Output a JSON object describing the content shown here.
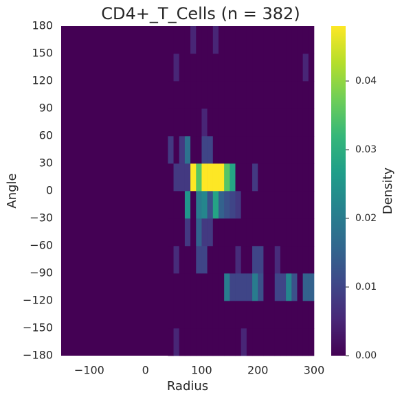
{
  "chart_data": {
    "type": "heatmap",
    "title": "CD4+_T_Cells (n = 382)",
    "x_label": "Radius",
    "y_label": "Angle",
    "colorbar_label": "Density",
    "colormap": "viridis",
    "xlim": [
      -150,
      300
    ],
    "xticks": [
      {
        "value": -100,
        "label": "−100"
      },
      0,
      100,
      200,
      300
    ],
    "ylim": [
      -180,
      180
    ],
    "yticks": [
      {
        "value": -180,
        "label": "−180"
      },
      {
        "value": -150,
        "label": "−150"
      },
      {
        "value": -120,
        "label": "−120"
      },
      {
        "value": -90,
        "label": "−90"
      },
      {
        "value": -60,
        "label": "−60"
      },
      {
        "value": -30,
        "label": "−30"
      },
      0,
      30,
      60,
      90,
      120,
      150,
      180
    ],
    "clim": [
      0,
      0.048
    ],
    "cticks": [
      {
        "value": 0,
        "label": "0.00"
      },
      {
        "value": 0.01,
        "label": "0.01"
      },
      {
        "value": 0.02,
        "label": "0.02"
      },
      {
        "value": 0.03,
        "label": "0.03"
      },
      {
        "value": 0.04,
        "label": "0.04"
      }
    ],
    "x_bins": [
      40,
      50,
      60,
      70,
      80,
      90,
      100,
      110,
      120,
      130,
      140,
      150,
      160,
      170,
      180,
      190,
      200,
      210,
      220,
      230,
      240,
      250,
      260,
      270,
      280,
      290,
      300
    ],
    "y_bins": [
      -180,
      -150,
      -120,
      -90,
      -60,
      -30,
      0,
      30,
      60,
      90,
      120,
      150,
      180
    ],
    "z": [
      [
        0,
        0.005,
        0,
        0,
        0,
        0,
        0,
        0,
        0,
        0,
        0,
        0,
        0,
        0.005,
        0,
        0,
        0,
        0,
        0,
        0,
        0,
        0,
        0,
        0,
        0,
        0
      ],
      [
        0,
        0,
        0,
        0,
        0,
        0,
        0,
        0,
        0,
        0,
        0,
        0,
        0,
        0,
        0,
        0,
        0,
        0,
        0,
        0,
        0,
        0,
        0,
        0,
        0,
        0
      ],
      [
        0,
        0,
        0,
        0,
        0,
        0,
        0,
        0,
        0,
        0,
        0.02,
        0.01,
        0.01,
        0.01,
        0.01,
        0.02,
        0.012,
        0,
        0,
        0.01,
        0.01,
        0.022,
        0.012,
        0,
        0.015,
        0.015
      ],
      [
        0,
        0.006,
        0,
        0,
        0,
        0.01,
        0.01,
        0,
        0,
        0,
        0,
        0,
        0.006,
        0,
        0,
        0.01,
        0.01,
        0,
        0,
        0.006,
        0,
        0,
        0,
        0,
        0,
        0
      ],
      [
        0,
        0,
        0,
        0.008,
        0,
        0.015,
        0.008,
        0.008,
        0,
        0,
        0,
        0,
        0,
        0,
        0,
        0,
        0,
        0,
        0,
        0,
        0,
        0,
        0,
        0,
        0,
        0
      ],
      [
        0,
        0,
        0,
        0.025,
        0,
        0.02,
        0.022,
        0.012,
        0.028,
        0.015,
        0.012,
        0.01,
        0.008,
        0,
        0,
        0,
        0,
        0,
        0,
        0,
        0,
        0,
        0,
        0,
        0,
        0
      ],
      [
        0,
        0.008,
        0.008,
        0.008,
        0.048,
        0.035,
        0.048,
        0.048,
        0.048,
        0.048,
        0.035,
        0.028,
        0,
        0,
        0,
        0.008,
        0,
        0,
        0,
        0,
        0,
        0,
        0,
        0,
        0,
        0
      ],
      [
        0.008,
        0,
        0.008,
        0.018,
        0,
        0,
        0.01,
        0.01,
        0,
        0,
        0,
        0,
        0,
        0,
        0,
        0,
        0,
        0,
        0,
        0,
        0,
        0,
        0,
        0,
        0,
        0
      ],
      [
        0,
        0,
        0,
        0,
        0,
        0,
        0.005,
        0,
        0,
        0,
        0,
        0,
        0,
        0,
        0,
        0,
        0,
        0,
        0,
        0,
        0,
        0,
        0,
        0,
        0,
        0
      ],
      [
        0,
        0,
        0,
        0,
        0,
        0,
        0,
        0,
        0,
        0,
        0,
        0,
        0,
        0,
        0,
        0,
        0,
        0,
        0,
        0,
        0,
        0,
        0,
        0,
        0,
        0
      ],
      [
        0,
        0.005,
        0,
        0,
        0,
        0,
        0,
        0,
        0,
        0,
        0,
        0,
        0,
        0,
        0,
        0,
        0,
        0,
        0,
        0,
        0,
        0,
        0,
        0,
        0.005,
        0
      ],
      [
        0,
        0,
        0,
        0,
        0.005,
        0,
        0,
        0,
        0.005,
        0,
        0,
        0,
        0,
        0,
        0,
        0,
        0,
        0,
        0,
        0,
        0,
        0,
        0,
        0,
        0,
        0
      ]
    ]
  }
}
